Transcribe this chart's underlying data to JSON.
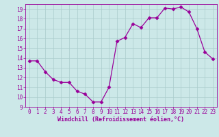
{
  "x": [
    0,
    1,
    2,
    3,
    4,
    5,
    6,
    7,
    8,
    9,
    10,
    11,
    12,
    13,
    14,
    15,
    16,
    17,
    18,
    19,
    20,
    21,
    22,
    23
  ],
  "y": [
    13.7,
    13.7,
    12.6,
    11.8,
    11.5,
    11.5,
    10.6,
    10.3,
    9.5,
    9.5,
    11.0,
    15.7,
    16.1,
    17.5,
    17.1,
    18.1,
    18.1,
    19.1,
    19.0,
    19.2,
    18.7,
    17.0,
    14.6,
    13.9
  ],
  "line_color": "#990099",
  "marker": "D",
  "marker_size": 2.5,
  "bg_color": "#cce8e8",
  "grid_color": "#aacccc",
  "xlabel": "Windchill (Refroidissement éolien,°C)",
  "xlabel_color": "#990099",
  "tick_color": "#990099",
  "ylim": [
    9,
    19.5
  ],
  "xlim": [
    -0.5,
    23.5
  ],
  "yticks": [
    9,
    10,
    11,
    12,
    13,
    14,
    15,
    16,
    17,
    18,
    19
  ],
  "xticks": [
    0,
    1,
    2,
    3,
    4,
    5,
    6,
    7,
    8,
    9,
    10,
    11,
    12,
    13,
    14,
    15,
    16,
    17,
    18,
    19,
    20,
    21,
    22,
    23
  ],
  "tick_fontsize": 5.5,
  "xlabel_fontsize": 6.0
}
